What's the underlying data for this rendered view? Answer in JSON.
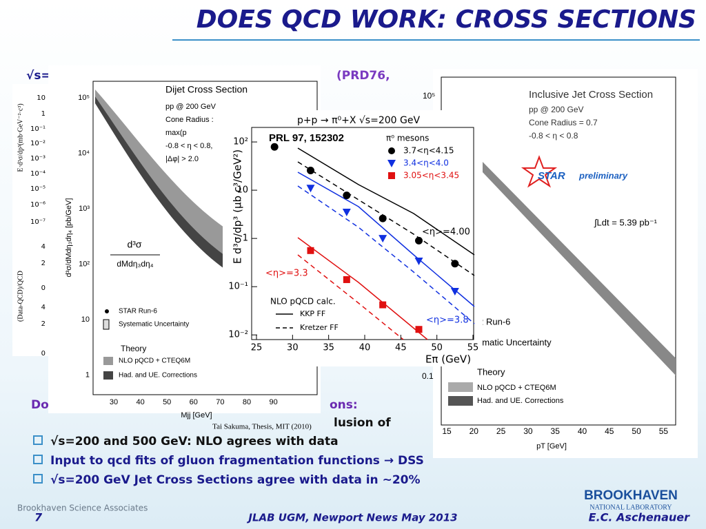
{
  "slide": {
    "title": "DOES QCD WORK: CROSS SECTIONS",
    "fragments": [
      "√s=",
      "(PRD76,",
      "Do",
      "ons:",
      "lusion of"
    ],
    "bullets": [
      "√s=200 and 500 GeV: NLO agrees with data",
      "Input to qcd fits of gluon fragmentation functions → DSS",
      "√s=200 GeV Jet Cross Sections agree with data in ~20%"
    ],
    "footer": {
      "org": "Brookhaven Science Associates",
      "page": "7",
      "event": "JLAB UGM, Newport News May 2013",
      "lab": "BROOKHAVEN",
      "lab_sub": "NATIONAL LABORATORY",
      "author": "E.C. Aschenauer"
    }
  },
  "back_panel": {
    "yticks": [
      "10",
      "1",
      "10⁻¹",
      "10⁻²",
      "10⁻³",
      "10⁻⁴",
      "10⁻⁵",
      "10⁻⁶",
      "10⁻⁷",
      "4",
      "2",
      "0",
      "4",
      "2",
      "0"
    ],
    "ylabel": "E·d³σ/dp³(mb·GeV⁻²·c³)",
    "ylabel2": "(Data-QCD)/QCD"
  },
  "dijet": {
    "title": "Dijet Cross Section",
    "lines": [
      "pp @ 200 GeV",
      "Cone Radius :",
      "max(p",
      "-0.8 < η < 0.8,",
      "|Δφ| > 2.0"
    ],
    "yticks": [
      "10⁵",
      "10⁴",
      "10³",
      "10²",
      "10",
      "1"
    ],
    "xticks": [
      "30",
      "40",
      "50",
      "60",
      "70",
      "80",
      "90"
    ],
    "xlabel": "Mjj [GeV]",
    "ylabel": "d³σ/dMdη₃dη₄ [pb/GeV]",
    "formula_num": "d³σ",
    "formula_den": "dMdη₃dη₄",
    "legend": [
      "STAR Run-6",
      "Systematic Uncertainty",
      "Theory",
      "NLO pQCD + CTEQ6M",
      "Had. and UE. Corrections"
    ],
    "citation": "Tai Sakuma, Thesis, MIT (2010)"
  },
  "incjet": {
    "title": "Inclusive Jet Cross Section",
    "lines": [
      "pp @ 200 GeV",
      "Cone Radius = 0.7",
      "-0.8 < η < 0.8"
    ],
    "star": "STAR",
    "prelim": "preliminary",
    "lumi": "∫Ldt = 5.39 pb⁻¹",
    "yticks": [
      "10⁵",
      "0.1"
    ],
    "xticks": [
      "15",
      "20",
      "25",
      "30",
      "35",
      "40",
      "45",
      "50",
      "55"
    ],
    "xlabel": "pT [GeV]",
    "legend": [
      "R Run-6",
      "ematic Uncertainty",
      "Theory",
      "NLO pQCD + CTEQ6M",
      "Had. and UE. Corrections"
    ]
  },
  "chart_data": {
    "type": "scatter",
    "title": "p+p → π⁰+X   √s=200 GeV",
    "subtitle": "PRL 97, 152302",
    "legend_title": "π⁰ mesons",
    "xlabel": "Eπ (GeV)",
    "ylabel": "E d³σ/dp³ (μb c³/GeV²)",
    "log_y": true,
    "xlim": [
      25,
      55
    ],
    "xticks": [
      25,
      30,
      35,
      40,
      45,
      50,
      55
    ],
    "ylim": [
      0.008,
      200
    ],
    "yticks": [
      {
        "value": 100,
        "label": "10²"
      },
      10,
      1,
      {
        "value": 0.1,
        "label": "10⁻¹"
      },
      {
        "value": 0.01,
        "label": "10⁻²"
      }
    ],
    "series": [
      {
        "name": "3.7<η<4.15",
        "color": "#000000",
        "marker": "circle",
        "x": [
          27.5,
          32.5,
          37.5,
          42.5,
          47.5,
          52.5
        ],
        "values": [
          79,
          25.6,
          7.8,
          2.6,
          0.9,
          0.3
        ]
      },
      {
        "name": "3.4<η<4.0",
        "color": "#1030e0",
        "marker": "triangle",
        "x": [
          32.5,
          37.5,
          42.5,
          47.5,
          52.5
        ],
        "values": [
          11,
          3.5,
          1.0,
          0.34,
          0.08
        ]
      },
      {
        "name": "3.05<η<3.45",
        "color": "#e01010",
        "marker": "square",
        "x": [
          32.5,
          37.5,
          42.5,
          47.5
        ],
        "values": [
          0.56,
          0.14,
          0.042,
          0.013
        ]
      }
    ],
    "annotations": [
      "<η>=4.00",
      "<η>=3.3",
      "<η>=3.8"
    ],
    "theory_title": "NLO pQCD calc.",
    "theory": [
      "KKP FF",
      "Kretzer FF"
    ]
  }
}
